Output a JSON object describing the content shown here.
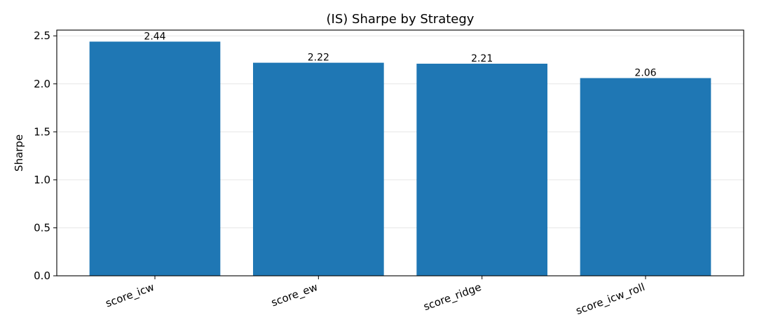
{
  "chart_data": {
    "type": "bar",
    "title": "(IS) Sharpe by Strategy",
    "xlabel": "",
    "ylabel": "Sharpe",
    "categories": [
      "score_icw",
      "score_ew",
      "score_ridge",
      "score_icw_roll"
    ],
    "values": [
      2.44,
      2.22,
      2.21,
      2.06
    ],
    "value_labels": [
      "2.44",
      "2.22",
      "2.21",
      "2.06"
    ],
    "yticks": [
      0.0,
      0.5,
      1.0,
      1.5,
      2.0,
      2.5
    ],
    "ytick_labels": [
      "0.0",
      "0.5",
      "1.0",
      "1.5",
      "2.0",
      "2.5"
    ],
    "ylim": [
      0,
      2.56
    ],
    "grid": "y",
    "bar_color": "#1f77b4",
    "grid_color": "#e6e6e6"
  }
}
